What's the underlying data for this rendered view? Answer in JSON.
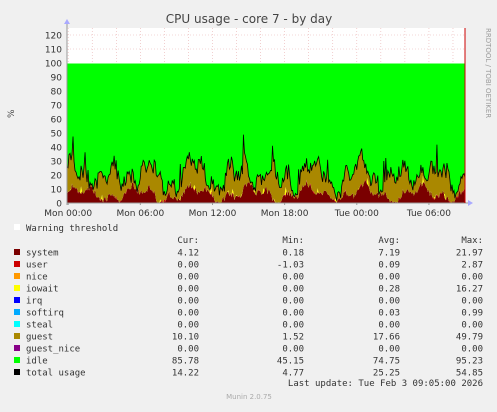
{
  "chart_data": {
    "type": "area",
    "title": "CPU usage - core 7 - by day",
    "ylabel": "%",
    "watermark": "RRDTOOL / TOBI OETIKER",
    "ylim": [
      0,
      125
    ],
    "yticks": [
      0,
      10,
      20,
      30,
      40,
      50,
      60,
      70,
      80,
      90,
      100,
      110,
      120
    ],
    "x_ticks": [
      {
        "label": "Mon 00:00",
        "hour": 0
      },
      {
        "label": "Mon 06:00",
        "hour": 6
      },
      {
        "label": "Mon 12:00",
        "hour": 12
      },
      {
        "label": "Mon 18:00",
        "hour": 18
      },
      {
        "label": "Tue 00:00",
        "hour": 24
      },
      {
        "label": "Tue 06:00",
        "hour": 30
      }
    ],
    "x_range_hours": [
      -0.1,
      33
    ],
    "warning_label": "Warning threshold",
    "warning_level": 100,
    "colors": {
      "system": "#7a0000",
      "user": "#cc0000",
      "nice": "#ff9900",
      "iowait": "#ffff00",
      "irq": "#0000ff",
      "softirq": "#00aaff",
      "steal": "#00ffff",
      "guest": "#aa8800",
      "guest_nice": "#880088",
      "idle": "#00ff00",
      "total_usage": "#000000",
      "background": "#ffffff",
      "grid": "#e8b0b0",
      "axis": "#999999",
      "frame": "#f0f0f0"
    },
    "table_headers": [
      "Cur:",
      "Min:",
      "Avg:",
      "Max:"
    ],
    "series": [
      {
        "name": "system",
        "color": "#7a0000",
        "cur": "4.12",
        "min": "0.18",
        "avg": "7.19",
        "max": "21.97"
      },
      {
        "name": "user",
        "color": "#cc0000",
        "cur": "0.00",
        "min": "-1.03",
        "avg": "0.09",
        "max": "2.87"
      },
      {
        "name": "nice",
        "color": "#ff9900",
        "cur": "0.00",
        "min": "0.00",
        "avg": "0.00",
        "max": "0.00"
      },
      {
        "name": "iowait",
        "color": "#ffff00",
        "cur": "0.00",
        "min": "0.00",
        "avg": "0.28",
        "max": "16.27"
      },
      {
        "name": "irq",
        "color": "#0000ff",
        "cur": "0.00",
        "min": "0.00",
        "avg": "0.00",
        "max": "0.00"
      },
      {
        "name": "softirq",
        "color": "#00aaff",
        "cur": "0.00",
        "min": "0.00",
        "avg": "0.03",
        "max": "0.99"
      },
      {
        "name": "steal",
        "color": "#00ffff",
        "cur": "0.00",
        "min": "0.00",
        "avg": "0.00",
        "max": "0.00"
      },
      {
        "name": "guest",
        "color": "#aa8800",
        "cur": "10.10",
        "min": "1.52",
        "avg": "17.66",
        "max": "49.79"
      },
      {
        "name": "guest_nice",
        "color": "#880088",
        "cur": "0.00",
        "min": "0.00",
        "avg": "0.00",
        "max": "0.00"
      },
      {
        "name": "idle",
        "color": "#00ff00",
        "cur": "85.78",
        "min": "45.15",
        "avg": "74.75",
        "max": "95.23"
      },
      {
        "name": "total usage",
        "color": "#000000",
        "cur": "14.22",
        "min": "4.77",
        "avg": "25.25",
        "max": "54.85"
      }
    ],
    "last_update": "Last update: Tue Feb  3 09:05:00 2026",
    "footer": "Munin 2.0.75"
  }
}
